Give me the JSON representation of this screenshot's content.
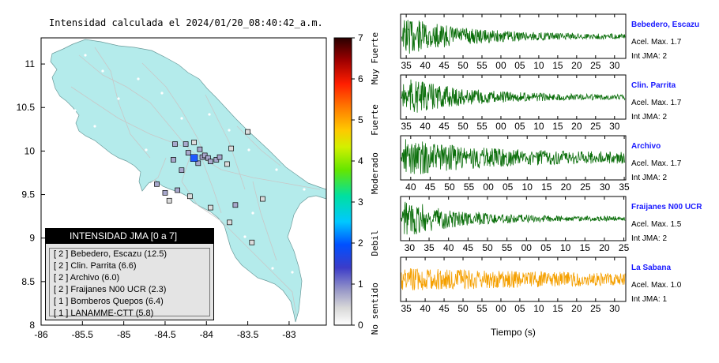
{
  "map": {
    "title": "Intensidad calculada el 2024/01/20_08:40:42_a.m.",
    "x_ticks": [
      "-86",
      "-85.5",
      "-85",
      "-84.5",
      "-84",
      "-83.5",
      "-83"
    ],
    "y_ticks": [
      "11",
      "10.5",
      "10",
      "9.5",
      "9",
      "8.5",
      "8"
    ],
    "colors": {
      "land": "#b4ebeb",
      "sea": "#ffffff",
      "roads": "#c0c0c0",
      "epicenter": "#1e5aff"
    },
    "stations": [
      {
        "lon": -84.15,
        "lat": 9.92,
        "level": 2
      },
      {
        "lon": -84.05,
        "lat": 9.93,
        "level": 1
      },
      {
        "lon": -84.08,
        "lat": 10.02,
        "level": 1
      },
      {
        "lon": -84.02,
        "lat": 9.95,
        "level": 1
      },
      {
        "lon": -83.98,
        "lat": 9.92,
        "level": 1
      },
      {
        "lon": -83.95,
        "lat": 9.88,
        "level": 1
      },
      {
        "lon": -84.1,
        "lat": 9.86,
        "level": 1
      },
      {
        "lon": -84.22,
        "lat": 9.98,
        "level": 1
      },
      {
        "lon": -84.25,
        "lat": 10.08,
        "level": 1
      },
      {
        "lon": -84.38,
        "lat": 10.08,
        "level": 1
      },
      {
        "lon": -83.88,
        "lat": 9.9,
        "level": 1
      },
      {
        "lon": -83.84,
        "lat": 9.93,
        "level": 1
      },
      {
        "lon": -84.4,
        "lat": 9.9,
        "level": 1
      },
      {
        "lon": -84.3,
        "lat": 9.78,
        "level": 1
      },
      {
        "lon": -84.6,
        "lat": 9.62,
        "level": 1
      },
      {
        "lon": -84.35,
        "lat": 9.55,
        "level": 1
      },
      {
        "lon": -84.5,
        "lat": 9.52,
        "level": 1
      },
      {
        "lon": -83.65,
        "lat": 9.38,
        "level": 1
      },
      {
        "lon": -83.7,
        "lat": 10.03,
        "level": 0
      },
      {
        "lon": -83.5,
        "lat": 10.22,
        "level": 0
      },
      {
        "lon": -83.32,
        "lat": 9.45,
        "level": 0
      },
      {
        "lon": -83.95,
        "lat": 9.35,
        "level": 0
      },
      {
        "lon": -84.2,
        "lat": 9.48,
        "level": 0
      },
      {
        "lon": -84.45,
        "lat": 9.43,
        "level": 0
      },
      {
        "lon": -83.45,
        "lat": 8.95,
        "level": 0
      },
      {
        "lon": -83.72,
        "lat": 9.18,
        "level": 0
      },
      {
        "lon": -84.15,
        "lat": 10.1,
        "level": 0
      },
      {
        "lon": -83.75,
        "lat": 9.85,
        "level": 0
      }
    ],
    "epicenter": {
      "lon": -84.15,
      "lat": 9.92
    }
  },
  "legend": {
    "title": "INTENSIDAD JMA [0 a 7]",
    "items": [
      "[ 2 ]  Bebedero, Escazu (12.5)",
      "[ 2 ]  Clin. Parrita (6.6)",
      "[ 2 ]  Archivo (6.0)",
      "[ 2 ]  Fraijanes N00 UCR (2.3)",
      "[ 1 ]  Bomberos Quepos (6.4)",
      "[ 1 ]  LANAMME-CTT (5.8)"
    ]
  },
  "colorbar": {
    "ticks": [
      "0",
      "1",
      "2",
      "3",
      "4",
      "5",
      "6",
      "7"
    ],
    "categories": [
      "No sentido",
      "Debil",
      "Moderado",
      "Fuerte",
      "Muy Fuerte"
    ]
  },
  "traces": [
    {
      "name": "Bebedero, Escazu",
      "accel": "Acel. Max. 1.7",
      "int": "Int JMA: 2",
      "color": "#0a6e0a",
      "ticks": [
        "35",
        "40",
        "45",
        "50",
        "55",
        "00",
        "05",
        "10",
        "15",
        "20",
        "25",
        "30"
      ],
      "start": 0.025,
      "step": 0.0841
    },
    {
      "name": "Clin. Parrita",
      "accel": "Acel. Max. 1.7",
      "int": "Int JMA: 2",
      "color": "#0a6e0a",
      "ticks": [
        "35",
        "40",
        "45",
        "50",
        "55",
        "00",
        "05",
        "10",
        "15",
        "20",
        "25",
        "30"
      ],
      "start": 0.025,
      "step": 0.0841
    },
    {
      "name": "Archivo",
      "accel": "Acel. Max. 1.7",
      "int": "Int JMA: 2",
      "color": "#0a6e0a",
      "ticks": [
        "40",
        "45",
        "50",
        "55",
        "00",
        "05",
        "10",
        "15",
        "20",
        "25",
        "30",
        "35"
      ],
      "start": 0.045,
      "step": 0.0862
    },
    {
      "name": "Fraijanes N00 UCR",
      "accel": "Acel. Max. 1.5",
      "int": "Int JMA: 2",
      "color": "#0a6e0a",
      "ticks": [
        "30",
        "35",
        "40",
        "45",
        "50",
        "55",
        "00",
        "05",
        "10",
        "15",
        "20",
        "25"
      ],
      "start": 0.04,
      "step": 0.0865
    },
    {
      "name": "La Sabana",
      "accel": "Acel. Max. 1.0",
      "int": "Int JMA: 1",
      "color": "#f5a000",
      "ticks": [
        "35",
        "40",
        "45",
        "50",
        "55",
        "00",
        "05",
        "10",
        "15",
        "20",
        "25",
        "30"
      ],
      "start": 0.025,
      "step": 0.0841
    }
  ],
  "xaxis_title": "Tiempo (s)",
  "chart_data": [
    {
      "type": "scatter",
      "title": "Intensidad calculada el 2024/01/20_08:40:42_a.m.",
      "xlim": [
        -86,
        -82.55
      ],
      "ylim": [
        8,
        11.3
      ],
      "x_ticks": [
        -86,
        -85.5,
        -85,
        -84.5,
        -84,
        -83.5,
        -83
      ],
      "y_ticks": [
        8,
        8.5,
        9,
        9.5,
        10,
        10.5,
        11
      ],
      "legend": "bottom-left",
      "stations": [
        {
          "name": "Bebedero, Escazu",
          "intensity": 2,
          "distance": 12.5
        },
        {
          "name": "Clin. Parrita",
          "intensity": 2,
          "distance": 6.6
        },
        {
          "name": "Archivo",
          "intensity": 2,
          "distance": 6.0
        },
        {
          "name": "Fraijanes N00 UCR",
          "intensity": 2,
          "distance": 2.3
        },
        {
          "name": "Bomberos Quepos",
          "intensity": 1,
          "distance": 6.4
        },
        {
          "name": "LANAMME-CTT",
          "intensity": 1,
          "distance": 5.8
        }
      ]
    },
    {
      "type": "line",
      "xlabel": "Tiempo (s)",
      "series": [
        {
          "name": "Bebedero, Escazu",
          "acel_max": 1.7,
          "int_jma": 2
        },
        {
          "name": "Clin. Parrita",
          "acel_max": 1.7,
          "int_jma": 2
        },
        {
          "name": "Archivo",
          "acel_max": 1.7,
          "int_jma": 2
        },
        {
          "name": "Fraijanes N00 UCR",
          "acel_max": 1.5,
          "int_jma": 2
        },
        {
          "name": "La Sabana",
          "acel_max": 1.0,
          "int_jma": 1
        }
      ]
    }
  ]
}
